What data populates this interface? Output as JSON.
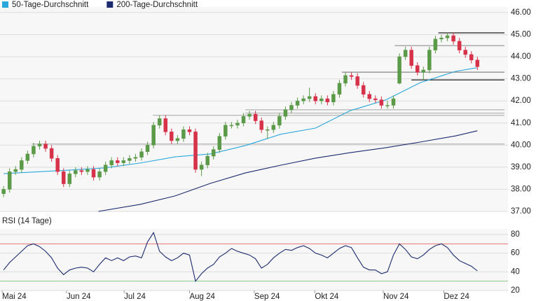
{
  "chart_data": [
    {
      "type": "candlestick",
      "legend": "top-left",
      "grid": true,
      "xlim": [
        -0.6,
        84.1
      ],
      "ylim": [
        37,
        46.25
      ],
      "yticks": [
        {
          "value": 37,
          "label": "37.00"
        },
        {
          "value": 38,
          "label": "38.00"
        },
        {
          "value": 39,
          "label": "39.00"
        },
        {
          "value": 40,
          "label": "40.00"
        },
        {
          "value": 41,
          "label": "41.00"
        },
        {
          "value": 42,
          "label": "42.00"
        },
        {
          "value": 43,
          "label": "43.00"
        },
        {
          "value": 44,
          "label": "44.00"
        },
        {
          "value": 45,
          "label": "45.00"
        },
        {
          "value": 46,
          "label": "46.00"
        }
      ],
      "up_color": "#5b9a48",
      "down_color": "#d6324a",
      "x": [
        0,
        1,
        2,
        3,
        4,
        5,
        6,
        7,
        8,
        9,
        10,
        11,
        12,
        13,
        14,
        15,
        16,
        17,
        18,
        19,
        20,
        21,
        22,
        23,
        24,
        25,
        26,
        27,
        28,
        29,
        30,
        31,
        32,
        33,
        34,
        35,
        36,
        37,
        38,
        39,
        40,
        41,
        42,
        43,
        44,
        45,
        46,
        47,
        48,
        49,
        50,
        51,
        52,
        53,
        54,
        55,
        56,
        57,
        58,
        59,
        60,
        61,
        62,
        63,
        64,
        65,
        66,
        67,
        68,
        69,
        70,
        71,
        72,
        73,
        74,
        75,
        76,
        77,
        78,
        79
      ],
      "open": [
        37.8,
        38.0,
        38.8,
        38.9,
        39.3,
        39.6,
        39.95,
        40.05,
        39.85,
        39.4,
        38.8,
        38.25,
        38.7,
        38.85,
        38.8,
        38.9,
        38.55,
        38.8,
        39.1,
        39.3,
        39.2,
        39.3,
        39.4,
        39.45,
        39.7,
        40.0,
        40.9,
        41.2,
        40.6,
        40.2,
        40.3,
        40.7,
        40.6,
        38.9,
        39.1,
        39.5,
        39.8,
        40.4,
        40.9,
        40.9,
        41.0,
        41.3,
        41.4,
        41.1,
        40.7,
        40.7,
        40.9,
        41.3,
        41.6,
        41.8,
        42.0,
        42.1,
        42.2,
        42.0,
        42.1,
        41.95,
        42.3,
        42.8,
        43.15,
        43.1,
        42.7,
        42.3,
        42.1,
        42.05,
        41.8,
        41.8,
        42.8,
        44.0,
        44.3,
        43.6,
        43.3,
        43.4,
        44.3,
        44.8,
        44.85,
        44.95,
        44.7,
        44.3,
        44.1,
        43.85
      ],
      "high": [
        38.15,
        38.95,
        39.05,
        39.45,
        39.75,
        40.1,
        40.2,
        40.2,
        40.0,
        39.55,
        38.95,
        38.85,
        39.0,
        39.0,
        39.05,
        39.05,
        38.95,
        39.25,
        39.45,
        39.45,
        39.45,
        39.55,
        39.6,
        39.85,
        40.15,
        41.05,
        41.35,
        41.35,
        40.75,
        40.45,
        40.85,
        40.85,
        40.75,
        39.25,
        39.65,
        39.95,
        40.55,
        41.05,
        41.05,
        41.15,
        41.45,
        41.55,
        41.55,
        41.25,
        40.85,
        41.05,
        41.45,
        41.75,
        41.95,
        42.15,
        42.25,
        42.6,
        42.35,
        42.25,
        42.25,
        42.45,
        42.95,
        43.3,
        43.3,
        43.25,
        42.85,
        42.45,
        42.25,
        42.2,
        42.0,
        42.25,
        44.15,
        44.45,
        44.45,
        43.75,
        43.55,
        44.45,
        44.95,
        45.0,
        45.1,
        45.1,
        44.85,
        44.45,
        44.25,
        44.0
      ],
      "low": [
        37.65,
        37.85,
        38.65,
        38.75,
        39.15,
        39.45,
        39.8,
        39.7,
        39.25,
        38.65,
        38.1,
        38.1,
        38.55,
        38.65,
        38.65,
        38.4,
        38.4,
        38.65,
        38.95,
        39.05,
        39.05,
        39.15,
        39.25,
        39.3,
        39.55,
        39.85,
        40.75,
        40.45,
        40.05,
        40.05,
        40.15,
        40.45,
        38.75,
        38.6,
        38.95,
        39.35,
        39.65,
        40.25,
        40.75,
        40.75,
        40.85,
        41.15,
        40.95,
        40.55,
        40.3,
        40.55,
        40.75,
        41.15,
        41.45,
        41.65,
        41.85,
        41.95,
        41.85,
        41.85,
        41.8,
        41.8,
        42.15,
        42.65,
        42.95,
        42.55,
        42.15,
        41.95,
        41.9,
        41.65,
        41.65,
        41.65,
        42.75,
        43.85,
        43.45,
        43.15,
        42.95,
        43.25,
        44.15,
        44.65,
        44.7,
        44.55,
        44.15,
        43.95,
        43.7,
        43.4
      ],
      "close": [
        38.0,
        38.8,
        38.9,
        39.3,
        39.6,
        39.95,
        40.05,
        39.85,
        39.4,
        38.8,
        38.25,
        38.7,
        38.85,
        38.8,
        38.9,
        38.55,
        38.8,
        39.1,
        39.3,
        39.2,
        39.3,
        39.4,
        39.45,
        39.7,
        40.0,
        40.9,
        41.2,
        40.6,
        40.2,
        40.3,
        40.7,
        40.6,
        38.9,
        39.1,
        39.5,
        39.8,
        40.4,
        40.9,
        40.9,
        41.0,
        41.3,
        41.4,
        41.1,
        40.7,
        40.7,
        40.9,
        41.3,
        41.6,
        41.8,
        42.0,
        42.1,
        42.2,
        42.0,
        42.1,
        41.95,
        42.3,
        42.8,
        43.15,
        43.1,
        42.7,
        42.3,
        42.1,
        42.05,
        41.8,
        41.8,
        42.1,
        44.0,
        44.3,
        43.6,
        43.3,
        43.4,
        44.3,
        44.8,
        44.85,
        44.95,
        44.7,
        44.3,
        44.1,
        43.85,
        43.55
      ],
      "series": [
        {
          "name": "50-Tage-Durchschnitt",
          "color": "#2aa7dd",
          "x": [
            0,
            11.1,
            16.9,
            22.8,
            28.6,
            34.5,
            40.3,
            46.2,
            52.0,
            57.8,
            63.7,
            69.5,
            75.4,
            78.9
          ],
          "values": [
            38.71,
            38.87,
            38.97,
            39.19,
            39.47,
            39.6,
            39.98,
            40.49,
            40.77,
            41.56,
            42.04,
            42.83,
            43.34,
            43.5
          ]
        },
        {
          "name": "200-Tage-Durchschnitt",
          "color": "#1b2b6e",
          "x": [
            15.8,
            22.8,
            28.6,
            34.5,
            40.3,
            46.2,
            52.0,
            57.8,
            63.7,
            69.5,
            75.4,
            79.0
          ],
          "values": [
            37.0,
            37.32,
            37.7,
            38.27,
            38.74,
            39.09,
            39.41,
            39.66,
            39.88,
            40.14,
            40.42,
            40.65
          ]
        }
      ],
      "levels": [
        {
          "value": 45.08,
          "from": 72.5,
          "color": "#333333"
        },
        {
          "value": 44.5,
          "from": 65.2,
          "color": "#aaaaaa"
        },
        {
          "value": 43.3,
          "from": 56.4,
          "color": "#999999"
        },
        {
          "value": 42.95,
          "from": 68.0,
          "color": "#333333"
        },
        {
          "value": 41.6,
          "from": 40.3,
          "color": "#bbbbbb"
        },
        {
          "value": 41.45,
          "from": 40.3,
          "color": "#bbbbbb"
        },
        {
          "value": 41.35,
          "from": 24.9,
          "color": "#bbbbbb"
        },
        {
          "value": 40.05,
          "from": 4.7,
          "color": "#bbbbbb"
        }
      ]
    },
    {
      "type": "line",
      "title": "RSI (14 Tage)",
      "grid": true,
      "color": "#1b2b6e",
      "xlim": [
        -0.6,
        84.1
      ],
      "xticks": [
        {
          "value": -0.23,
          "label": "Mai 24"
        },
        {
          "value": 10.5,
          "label": "Jun 24"
        },
        {
          "value": 20.1,
          "label": "Jul 24"
        },
        {
          "value": 31.0,
          "label": "Aug 24"
        },
        {
          "value": 41.8,
          "label": "Sep 24"
        },
        {
          "value": 51.9,
          "label": "Okt 24"
        },
        {
          "value": 63.3,
          "label": "Nov 24"
        },
        {
          "value": 73.4,
          "label": "Dez 24"
        }
      ],
      "ylim": [
        20,
        86
      ],
      "yticks": [
        20,
        40,
        60,
        80
      ],
      "reference_lines": [
        {
          "value": 70,
          "color": "#e57373"
        },
        {
          "value": 30,
          "color": "#8bc98b"
        }
      ],
      "x": [
        0,
        1,
        2,
        3,
        4,
        5,
        6,
        7,
        8,
        9,
        10,
        11,
        12,
        13,
        14,
        15,
        16,
        17,
        18,
        19,
        20,
        21,
        22,
        23,
        24,
        25,
        26,
        27,
        28,
        29,
        30,
        31,
        32,
        33,
        34,
        35,
        36,
        37,
        38,
        39,
        40,
        41,
        42,
        43,
        44,
        45,
        46,
        47,
        48,
        49,
        50,
        51,
        52,
        53,
        54,
        55,
        56,
        57,
        58,
        59,
        60,
        61,
        62,
        63,
        64,
        65,
        66,
        67,
        68,
        69,
        70,
        71,
        72,
        73,
        74,
        75,
        76,
        77,
        78,
        79
      ],
      "values": [
        42,
        50,
        56,
        62,
        68,
        70,
        67,
        62,
        55,
        44,
        37,
        42,
        44,
        45,
        44,
        40,
        48,
        55,
        52,
        55,
        52,
        56,
        57,
        55,
        72,
        82,
        62,
        56,
        52,
        55,
        60,
        58,
        30,
        38,
        44,
        48,
        56,
        60,
        65,
        62,
        60,
        58,
        54,
        44,
        48,
        55,
        60,
        64,
        63,
        66,
        68,
        65,
        60,
        58,
        55,
        60,
        65,
        68,
        66,
        55,
        45,
        42,
        42,
        38,
        40,
        58,
        70,
        64,
        56,
        54,
        58,
        64,
        68,
        70,
        66,
        58,
        52,
        49,
        46,
        41
      ]
    }
  ]
}
